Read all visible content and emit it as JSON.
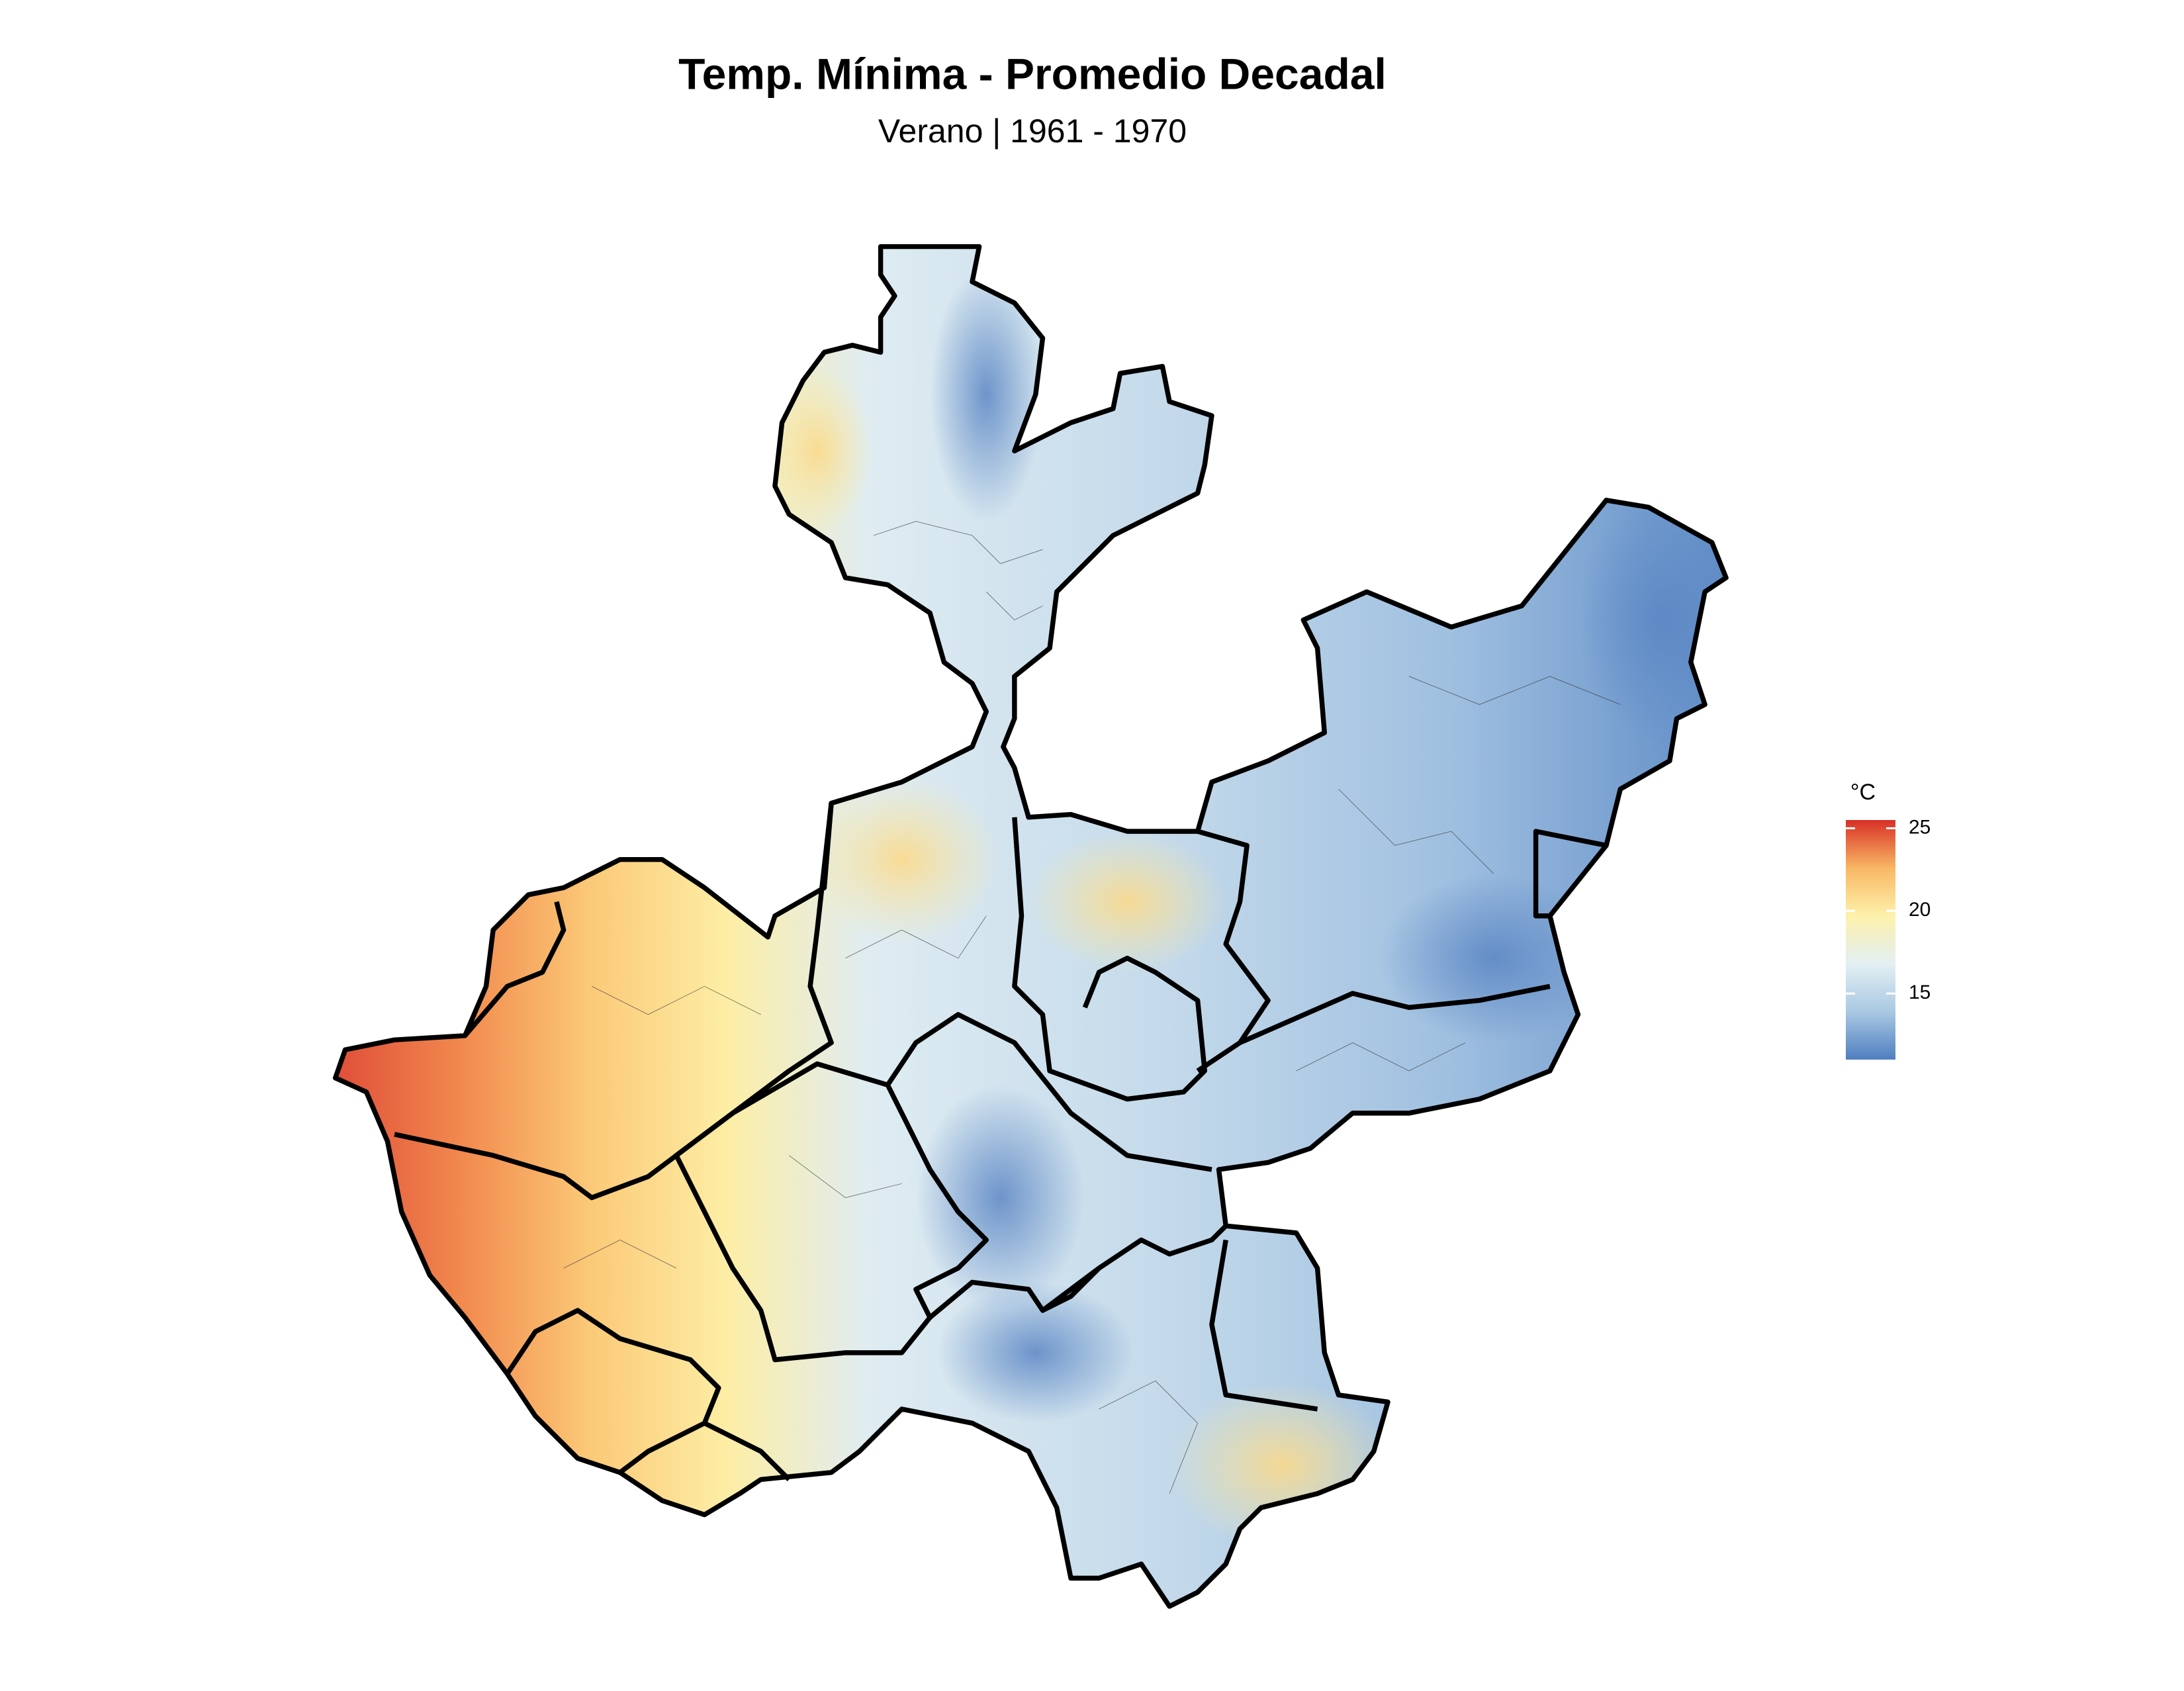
{
  "title": "Temp. Mínima - Promedio Decadal",
  "subtitle": "Verano | 1961 - 1970",
  "legend": {
    "title": "°C",
    "range": [
      11,
      25.5
    ],
    "ticks": [
      15,
      20,
      25
    ],
    "colors": [
      "#4f7fc0",
      "#a9c8e3",
      "#e3eff3",
      "#fdf1ab",
      "#f9b764",
      "#d73027"
    ]
  }
}
